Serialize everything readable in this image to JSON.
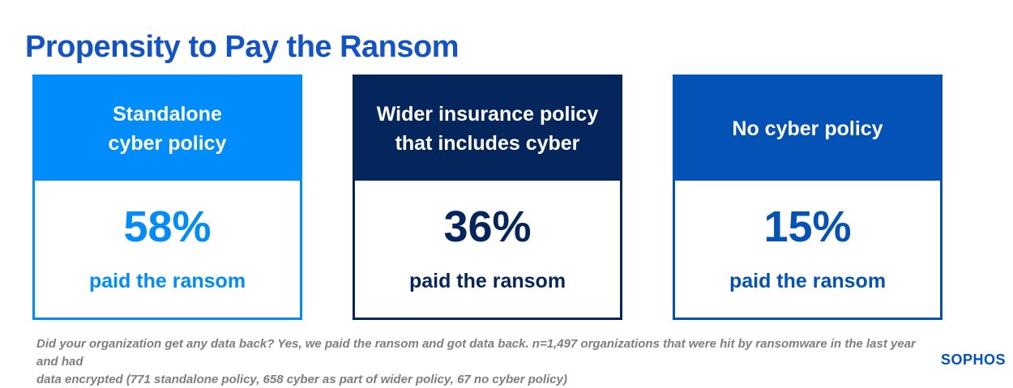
{
  "page": {
    "title": "Propensity to Pay the Ransom"
  },
  "cards": [
    {
      "label_lines": [
        "Standalone",
        "cyber policy"
      ],
      "value": "58%",
      "caption": "paid the ransom",
      "color": "#008cfa"
    },
    {
      "label_lines": [
        "Wider insurance policy",
        "that includes cyber"
      ],
      "value": "36%",
      "caption": "paid the ransom",
      "color": "#04265c"
    },
    {
      "label_lines": [
        "No cyber policy"
      ],
      "value": "15%",
      "caption": "paid the ransom",
      "color": "#0452b6"
    }
  ],
  "footnote": {
    "line1": "Did your organization get any data back? Yes, we paid the ransom and got data back. n=1,497 organizations that were hit by ransomware in the last year and had",
    "line2": "data encrypted (771 standalone policy, 658 cyber as part of wider policy, 67 no cyber policy)"
  },
  "brand": {
    "logo_text": "SOPHOS"
  },
  "colors": {
    "title_blue": "#1353c8",
    "bright_blue": "#008cfa",
    "navy": "#04265c",
    "medium_blue": "#0452b6",
    "logo_blue": "#0051c8",
    "footnote_gray": "#7e7e7e",
    "background": "#ffffff"
  },
  "chart_data": {
    "type": "table",
    "title": "Propensity to Pay the Ransom",
    "categories": [
      "Standalone cyber policy",
      "Wider insurance policy that includes cyber",
      "No cyber policy"
    ],
    "values": [
      58,
      36,
      15
    ],
    "unit": "%",
    "value_label": "paid the ransom",
    "sample_sizes": [
      771,
      658,
      67
    ],
    "n_total": 1497
  }
}
